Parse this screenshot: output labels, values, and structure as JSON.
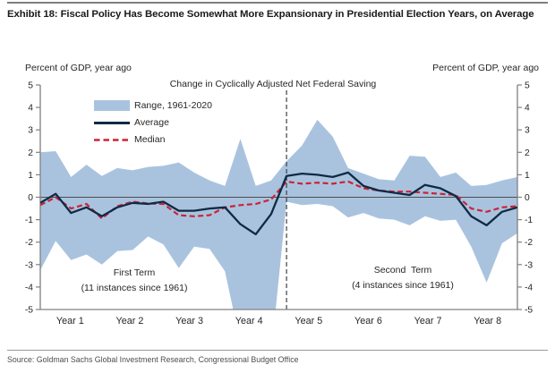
{
  "page": {
    "title": "Exhibit 18: Fiscal Policy Has Become Somewhat More Expansionary in Presidential Election Years, on Average",
    "source": "Source: Goldman Sachs Global Investment Research, Congressional Budget Office",
    "axis_label_left": "Percent of GDP, year ago",
    "axis_label_right": "Percent of GDP, year ago"
  },
  "chart_data": {
    "type": "area",
    "title": "Change in Cyclically Adjusted Net Federal Saving",
    "ylabel_left": "Percent of GDP, year ago",
    "ylabel_right": "Percent of GDP, year ago",
    "ylim": [
      -5,
      5
    ],
    "y_ticks": [
      5,
      4,
      3,
      2,
      1,
      0,
      -1,
      -2,
      -3,
      -4,
      -5
    ],
    "x_categories": [
      "Year 1",
      "Year 2",
      "Year 3",
      "Year 4",
      "Year 5",
      "Year 6",
      "Year 7",
      "Year 8"
    ],
    "points_per_year": 4,
    "grid": false,
    "legend_position": "top-left-inside",
    "colors": {
      "range": "#a9c3df",
      "average": "#0e2a44",
      "median": "#cb2336",
      "axis": "#808080",
      "divider": "#404040"
    },
    "series": [
      {
        "name": "Range, 1961-2020",
        "type": "band",
        "upper": [
          2.0,
          2.05,
          0.9,
          1.45,
          0.95,
          1.3,
          1.2,
          1.35,
          1.4,
          1.55,
          1.1,
          0.75,
          0.5,
          2.6,
          0.5,
          0.75,
          1.6,
          2.3,
          3.45,
          2.7,
          1.3,
          1.05,
          0.8,
          0.75,
          1.85,
          1.8,
          0.9,
          1.1,
          0.5,
          0.55,
          0.75,
          0.9
        ],
        "lower": [
          -3.25,
          -1.95,
          -2.8,
          -2.55,
          -3.0,
          -2.4,
          -2.35,
          -1.75,
          -2.1,
          -3.15,
          -2.2,
          -2.3,
          -3.3,
          -6.5,
          -7.5,
          -7.0,
          -0.2,
          -0.35,
          -0.3,
          -0.4,
          -0.9,
          -0.7,
          -0.95,
          -1.0,
          -1.25,
          -0.85,
          -1.05,
          -1.0,
          -2.2,
          -3.8,
          -2.05,
          -1.6
        ]
      },
      {
        "name": "Average",
        "type": "line",
        "values": [
          -0.25,
          0.15,
          -0.7,
          -0.45,
          -0.85,
          -0.45,
          -0.25,
          -0.3,
          -0.2,
          -0.6,
          -0.6,
          -0.5,
          -0.45,
          -1.2,
          -1.65,
          -0.75,
          0.95,
          1.05,
          1.0,
          0.9,
          1.1,
          0.5,
          0.3,
          0.2,
          0.1,
          0.55,
          0.4,
          0.05,
          -0.85,
          -1.25,
          -0.65,
          -0.45
        ]
      },
      {
        "name": "Median",
        "type": "dashed-line",
        "values": [
          -0.35,
          0.0,
          -0.5,
          -0.3,
          -0.95,
          -0.4,
          -0.2,
          -0.28,
          -0.3,
          -0.8,
          -0.85,
          -0.8,
          -0.45,
          -0.35,
          -0.3,
          -0.1,
          0.7,
          0.6,
          0.65,
          0.6,
          0.7,
          0.4,
          0.3,
          0.25,
          0.25,
          0.2,
          0.15,
          0.1,
          -0.5,
          -0.65,
          -0.45,
          -0.4
        ]
      }
    ],
    "divider": {
      "at_point_index": 16,
      "note": "dashed vertical line between Year 4 and Year 5"
    },
    "annotations": [
      {
        "line1": "First Term",
        "line2": "(11 instances since 1961)"
      },
      {
        "line1": "Second  Term",
        "line2": "(4 instances since 1961)"
      }
    ]
  }
}
